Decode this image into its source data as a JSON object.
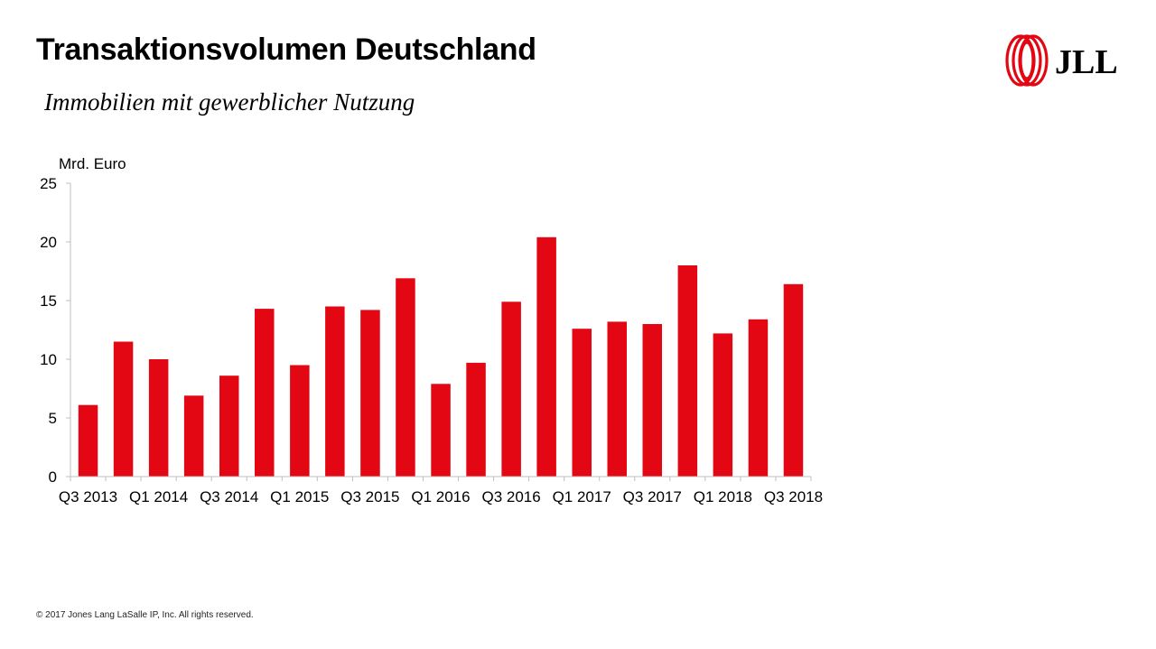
{
  "header": {
    "title": "Transaktionsvolumen Deutschland",
    "subtitle": "Immobilien mit gewerblicher Nutzung"
  },
  "logo": {
    "text": "JLL",
    "color": "#e30613",
    "icon": "jll-swirl-logo"
  },
  "footer": {
    "copyright": "© 2017 Jones Lang LaSalle IP, Inc. All rights reserved."
  },
  "chart_data": {
    "type": "bar",
    "unit_label": "Mrd. Euro",
    "bar_color": "#e30613",
    "categories": [
      "Q3 2013",
      "Q4 2013",
      "Q1 2014",
      "Q2 2014",
      "Q3 2014",
      "Q4 2014",
      "Q1 2015",
      "Q2 2015",
      "Q3 2015",
      "Q4 2015",
      "Q1 2016",
      "Q2 2016",
      "Q3 2016",
      "Q4 2016",
      "Q1 2017",
      "Q2 2017",
      "Q3 2017",
      "Q4 2017",
      "Q1 2018",
      "Q2 2018",
      "Q3 2018"
    ],
    "values": [
      6.1,
      11.5,
      10.0,
      6.9,
      8.6,
      14.3,
      9.5,
      14.5,
      14.2,
      16.9,
      7.9,
      9.7,
      14.9,
      20.4,
      12.6,
      13.2,
      13.0,
      18.0,
      12.2,
      13.4,
      16.4
    ],
    "x_tick_labels": [
      "Q3 2013",
      "Q1 2014",
      "Q3 2014",
      "Q1 2015",
      "Q3 2015",
      "Q1 2016",
      "Q3 2016",
      "Q1 2017",
      "Q3 2017",
      "Q1 2018",
      "Q3 2018"
    ],
    "y_ticks": [
      0,
      5,
      10,
      15,
      20,
      25
    ],
    "ylim": [
      0,
      25
    ],
    "grid": false,
    "legend": "none"
  }
}
